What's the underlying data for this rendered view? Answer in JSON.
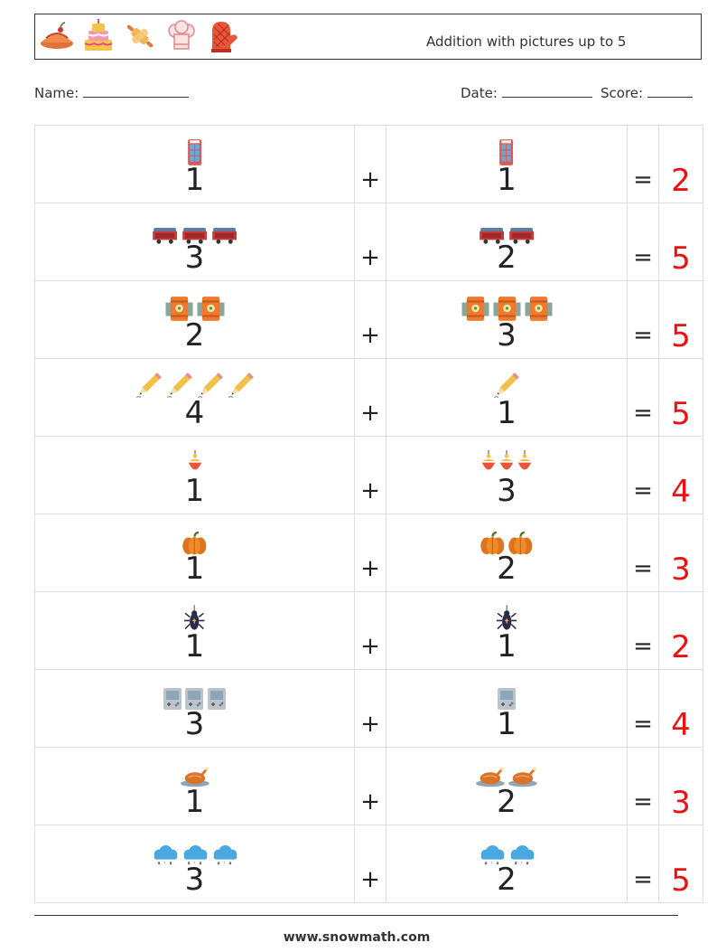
{
  "header": {
    "title": "Addition with pictures up to 5",
    "icons": [
      "pie-icon",
      "cake-icon",
      "rolling-pin-icon",
      "chef-hat-icon",
      "oven-mitt-icon"
    ]
  },
  "info": {
    "name_label": "Name:",
    "date_label": "Date:",
    "score_label": "Score:"
  },
  "problems": [
    {
      "a": "1",
      "a_icon": "phone-booth-icon",
      "b": "1",
      "b_icon": "phone-booth-icon",
      "op": "+",
      "eq": "=",
      "answer": "2"
    },
    {
      "a": "3",
      "a_icon": "mine-cart-icon",
      "b": "2",
      "b_icon": "mine-cart-icon",
      "op": "+",
      "eq": "=",
      "answer": "5"
    },
    {
      "a": "2",
      "a_icon": "barrel-icon",
      "b": "3",
      "b_icon": "barrel-icon",
      "op": "+",
      "eq": "=",
      "answer": "5"
    },
    {
      "a": "4",
      "a_icon": "pencil-icon",
      "b": "1",
      "b_icon": "pencil-icon",
      "op": "+",
      "eq": "=",
      "answer": "5"
    },
    {
      "a": "1",
      "a_icon": "fishing-float-icon",
      "b": "3",
      "b_icon": "fishing-float-icon",
      "op": "+",
      "eq": "=",
      "answer": "4"
    },
    {
      "a": "1",
      "a_icon": "pumpkin-icon",
      "b": "2",
      "b_icon": "pumpkin-icon",
      "op": "+",
      "eq": "=",
      "answer": "3"
    },
    {
      "a": "1",
      "a_icon": "spider-icon",
      "b": "1",
      "b_icon": "spider-icon",
      "op": "+",
      "eq": "=",
      "answer": "2"
    },
    {
      "a": "3",
      "a_icon": "game-console-icon",
      "b": "1",
      "b_icon": "game-console-icon",
      "op": "+",
      "eq": "=",
      "answer": "4"
    },
    {
      "a": "1",
      "a_icon": "roast-turkey-icon",
      "b": "2",
      "b_icon": "roast-turkey-icon",
      "op": "+",
      "eq": "=",
      "answer": "3"
    },
    {
      "a": "3",
      "a_icon": "rain-cloud-icon",
      "b": "2",
      "b_icon": "rain-cloud-icon",
      "op": "+",
      "eq": "=",
      "answer": "5"
    }
  ],
  "footer": {
    "website": "www.snowmath.com"
  },
  "colors": {
    "answer": "#ee1111",
    "border": "#dddddd"
  }
}
